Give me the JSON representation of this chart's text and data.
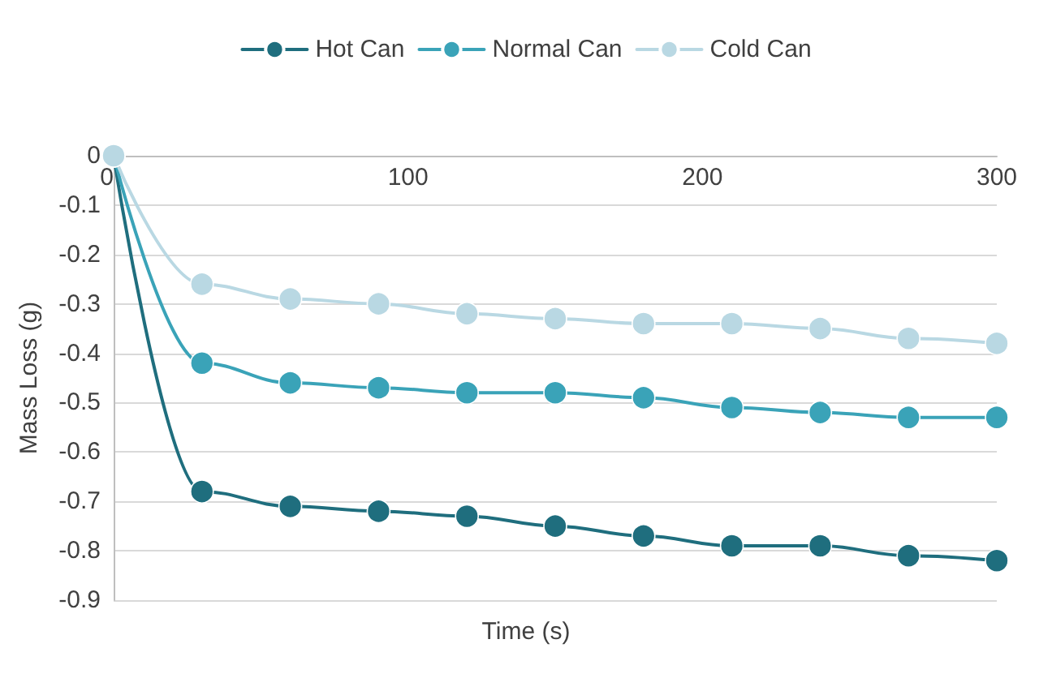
{
  "chart_data": {
    "type": "line",
    "xlabel": "Time (s)",
    "ylabel": "Mass Loss (g)",
    "x": [
      0,
      30,
      60,
      90,
      120,
      150,
      180,
      210,
      240,
      270,
      300
    ],
    "series": [
      {
        "name": "Hot Can",
        "color": "#1f6e7e",
        "values": [
          0,
          -0.68,
          -0.71,
          -0.72,
          -0.73,
          -0.75,
          -0.77,
          -0.79,
          -0.79,
          -0.81,
          -0.82
        ]
      },
      {
        "name": "Normal Can",
        "color": "#3aa3b8",
        "values": [
          0,
          -0.42,
          -0.46,
          -0.47,
          -0.48,
          -0.48,
          -0.49,
          -0.51,
          -0.52,
          -0.53,
          -0.53
        ]
      },
      {
        "name": "Cold Can",
        "color": "#b9d8e3",
        "values": [
          0,
          -0.26,
          -0.29,
          -0.3,
          -0.32,
          -0.33,
          -0.34,
          -0.34,
          -0.35,
          -0.37,
          -0.38
        ]
      }
    ],
    "xlim": [
      0,
      300
    ],
    "xticks": [
      0,
      100,
      200,
      300
    ],
    "ylim": [
      -0.9,
      0
    ],
    "yticks": [
      0,
      -0.1,
      -0.2,
      -0.3,
      -0.4,
      -0.5,
      -0.6,
      -0.7,
      -0.8,
      -0.9
    ],
    "grid": "y",
    "legend": "top",
    "marker": "circle",
    "line_style": "solid"
  }
}
